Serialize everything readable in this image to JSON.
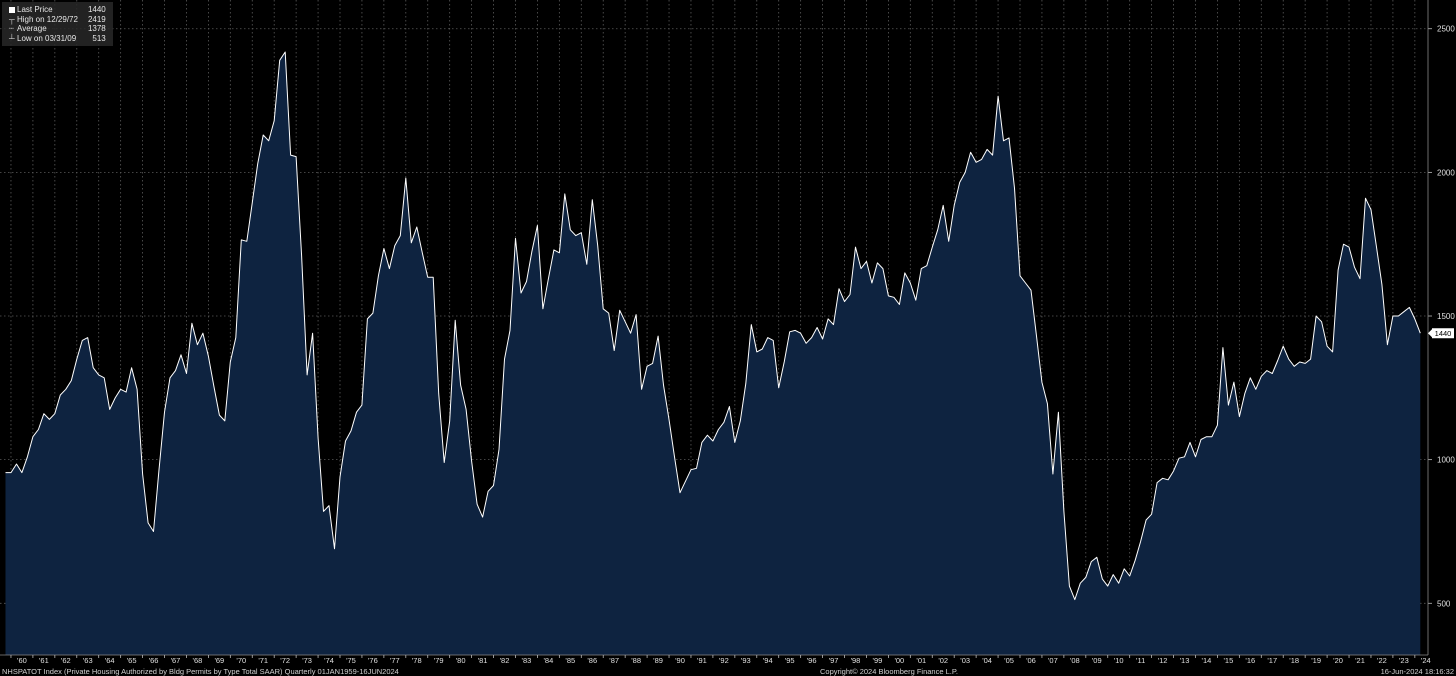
{
  "legend": {
    "last_label": "Last Price",
    "last_value": "1440",
    "high_label": "High on 12/29/72",
    "high_value": "2419",
    "avg_label": "Average",
    "avg_value": "1378",
    "low_label": "Low on 03/31/09",
    "low_value": "513"
  },
  "footer": {
    "left": "NHSPATOT Index (Private Housing Authorized by Bldg Permits by Type Total SAAR)  Quarterly 01JAN1959-16JUN2024",
    "center": "Copyright© 2024 Bloomberg Finance L.P.",
    "right": "16-Jun-2024 18:16:32"
  },
  "colors": {
    "background": "#000000",
    "area_fill": "#0e2340",
    "line": "#ffffff",
    "grid": "#5a5a5a"
  },
  "chart_data": {
    "type": "area",
    "ylim": [
      320,
      2600
    ],
    "yticks": [
      500,
      1000,
      1500,
      2000,
      2500
    ],
    "last_value_label": "1440",
    "xtick_labels": [
      "'60",
      "'61",
      "'62",
      "'63",
      "'64",
      "'65",
      "'66",
      "'67",
      "'68",
      "'69",
      "'70",
      "'71",
      "'72",
      "'73",
      "'74",
      "'75",
      "'76",
      "'77",
      "'78",
      "'79",
      "'80",
      "'81",
      "'82",
      "'83",
      "'84",
      "'85",
      "'86",
      "'87",
      "'88",
      "'89",
      "'90",
      "'91",
      "'92",
      "'93",
      "'94",
      "'95",
      "'96",
      "'97",
      "'98",
      "'99",
      "'00",
      "'01",
      "'02",
      "'03",
      "'04",
      "'05",
      "'06",
      "'07",
      "'08",
      "'09",
      "'10",
      "'11",
      "'12",
      "'13",
      "'14",
      "'15",
      "'16",
      "'17",
      "'18",
      "'19",
      "'20",
      "'21",
      "'22",
      "'23",
      "'24"
    ],
    "series": [
      {
        "start_year": 1959.75,
        "step_years": 0.25,
        "values": [
          955,
          955,
          985,
          955,
          1010,
          1080,
          1105,
          1160,
          1140,
          1160,
          1225,
          1245,
          1275,
          1350,
          1415,
          1425,
          1320,
          1295,
          1285,
          1175,
          1215,
          1245,
          1235,
          1320,
          1245,
          950,
          780,
          750,
          965,
          1165,
          1285,
          1310,
          1365,
          1300,
          1475,
          1400,
          1440,
          1360,
          1255,
          1155,
          1135,
          1340,
          1425,
          1765,
          1760,
          1895,
          2030,
          2130,
          2110,
          2180,
          2390,
          2419,
          2060,
          2055,
          1710,
          1295,
          1440,
          1075,
          820,
          840,
          690,
          940,
          1065,
          1100,
          1165,
          1190,
          1490,
          1510,
          1640,
          1735,
          1665,
          1745,
          1780,
          1980,
          1755,
          1810,
          1720,
          1635,
          1635,
          1230,
          990,
          1135,
          1485,
          1260,
          1175,
          995,
          845,
          800,
          890,
          910,
          1035,
          1350,
          1450,
          1770,
          1580,
          1620,
          1725,
          1815,
          1525,
          1630,
          1730,
          1720,
          1925,
          1800,
          1780,
          1790,
          1680,
          1905,
          1745,
          1525,
          1510,
          1380,
          1520,
          1480,
          1440,
          1505,
          1245,
          1325,
          1335,
          1430,
          1260,
          1140,
          1010,
          885,
          925,
          965,
          970,
          1060,
          1085,
          1065,
          1105,
          1130,
          1185,
          1060,
          1135,
          1265,
          1470,
          1375,
          1385,
          1425,
          1415,
          1250,
          1340,
          1445,
          1450,
          1440,
          1405,
          1425,
          1460,
          1420,
          1490,
          1470,
          1595,
          1550,
          1575,
          1740,
          1665,
          1690,
          1615,
          1685,
          1665,
          1570,
          1565,
          1540,
          1650,
          1615,
          1555,
          1665,
          1675,
          1740,
          1800,
          1885,
          1760,
          1885,
          1965,
          2000,
          2070,
          2035,
          2045,
          2080,
          2060,
          2265,
          2110,
          2120,
          1945,
          1640,
          1615,
          1590,
          1430,
          1270,
          1195,
          950,
          1165,
          820,
          560,
          513,
          570,
          590,
          645,
          660,
          585,
          560,
          600,
          570,
          620,
          595,
          650,
          715,
          790,
          810,
          920,
          935,
          930,
          960,
          1005,
          1010,
          1060,
          1010,
          1070,
          1080,
          1080,
          1120,
          1390,
          1190,
          1270,
          1150,
          1230,
          1285,
          1245,
          1290,
          1310,
          1300,
          1345,
          1395,
          1350,
          1325,
          1340,
          1335,
          1350,
          1500,
          1480,
          1395,
          1375,
          1660,
          1750,
          1740,
          1670,
          1630,
          1910,
          1870,
          1740,
          1610,
          1400,
          1500,
          1500,
          1515,
          1530,
          1490,
          1440
        ]
      }
    ]
  }
}
